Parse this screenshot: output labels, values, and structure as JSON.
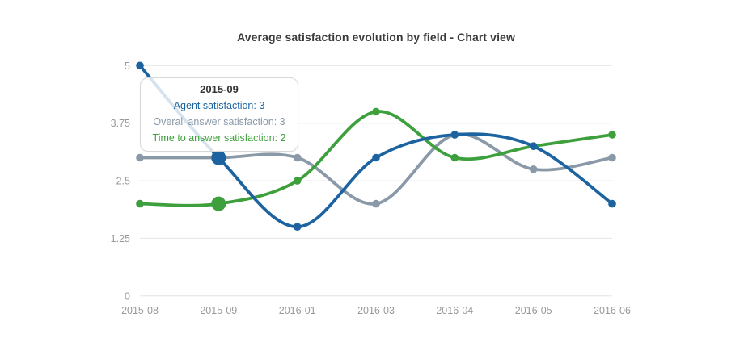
{
  "chart_data": {
    "type": "line",
    "title": "Average satisfaction evolution by field - Chart view",
    "categories": [
      "2015-08",
      "2015-09",
      "2016-01",
      "2016-03",
      "2016-04",
      "2016-05",
      "2016-06"
    ],
    "series": [
      {
        "name": "Agent satisfaction",
        "color": "#1c63a0",
        "values": [
          5,
          3,
          1.5,
          3,
          3.5,
          3.25,
          2
        ]
      },
      {
        "name": "Overall answer satisfaction",
        "color": "#8a99a8",
        "values": [
          3,
          3,
          3,
          2,
          3.5,
          2.75,
          3
        ]
      },
      {
        "name": "Time to answer satisfaction",
        "color": "#3ea03c",
        "values": [
          2,
          2,
          2.5,
          4,
          3,
          3.25,
          3.5
        ]
      }
    ],
    "draw_order": [
      1,
      2,
      0
    ],
    "ylim": [
      0,
      5
    ],
    "yticks": [
      0,
      1.25,
      2.5,
      3.75,
      5
    ],
    "xlabel": "",
    "ylabel": "",
    "grid": true,
    "legend_position": "none",
    "gridline_color": "#e4e4e4",
    "axis_text_color": "#999999",
    "hover": {
      "category_index": 1,
      "tooltip": {
        "title": "2015-09",
        "rows": [
          {
            "label": "Agent satisfaction",
            "value": 3,
            "color": "#1c63a0"
          },
          {
            "label": "Overall answer satisfaction",
            "value": 3,
            "color": "#8a99a8"
          },
          {
            "label": "Time to answer satisfaction",
            "value": 2,
            "color": "#3ea03c"
          }
        ]
      }
    }
  }
}
